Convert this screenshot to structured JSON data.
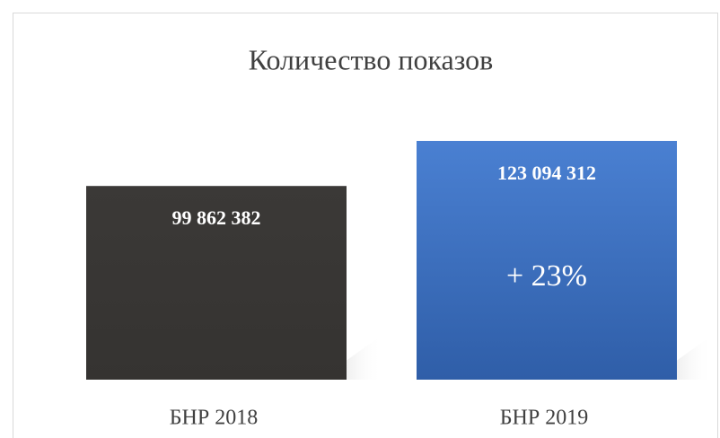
{
  "chart_data": {
    "type": "bar",
    "title": "Количество показов",
    "categories": [
      "БНР 2018",
      "БНР 2019"
    ],
    "series": [
      {
        "name": null,
        "colors": [
          "#3a3836",
          "#3f73c4"
        ],
        "values": [
          99862382,
          123094312
        ],
        "value_labels": [
          "99 862 382",
          "123 094 312"
        ]
      }
    ],
    "annotations": [
      "+ 23%"
    ]
  }
}
